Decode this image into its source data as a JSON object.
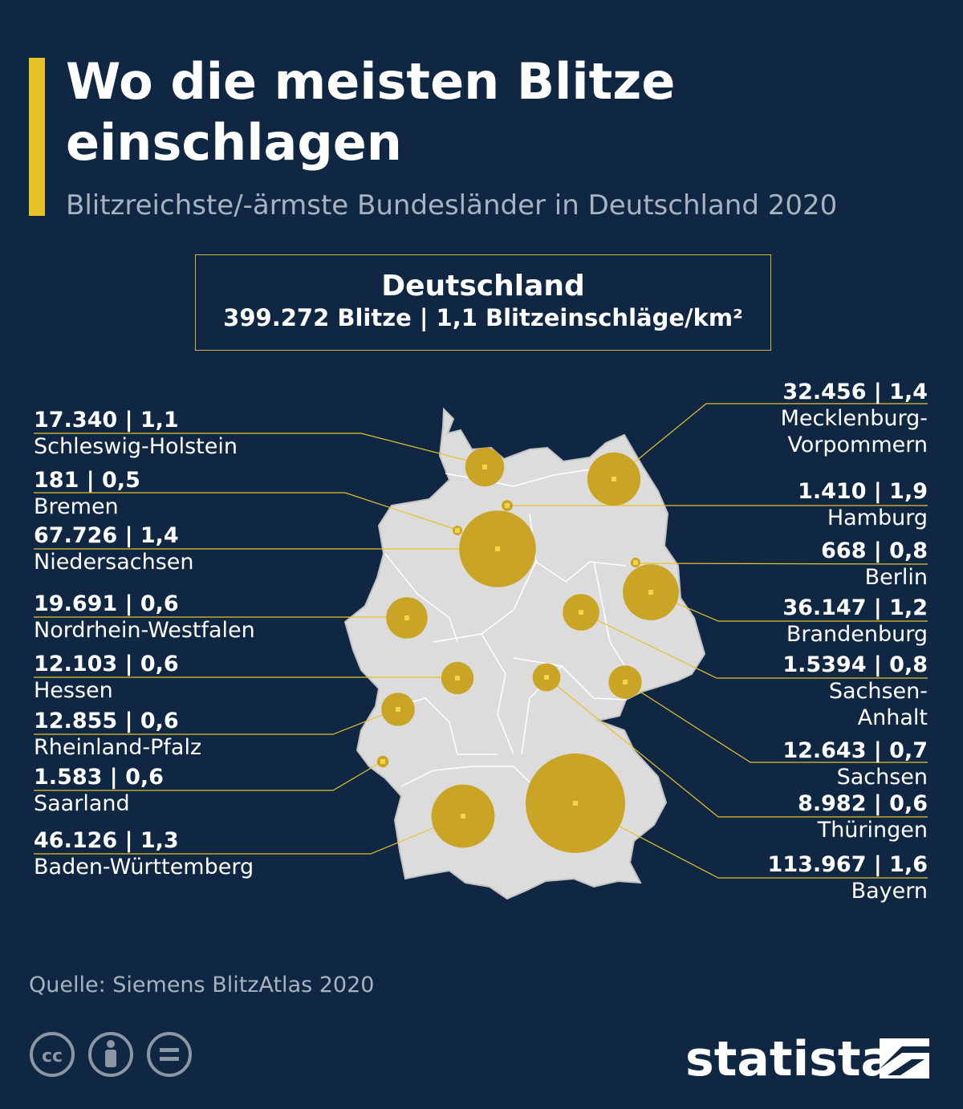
{
  "header": {
    "title": "Wo die meisten Blitze einschlagen",
    "subtitle": "Blitzreichste/-ärmste Bundesländer in Deutschland 2020"
  },
  "summary": {
    "title": "Deutschland",
    "stats": "399.272 Blitze | 1,1 Blitzeinschläge/km²"
  },
  "colors": {
    "background": "#0f2742",
    "accent": "#e8c22b",
    "bubble": "#c9a425",
    "land": "#dcdcdc"
  },
  "regions": [
    {
      "name": "Schleswig-Holstein",
      "value": "17.340 | 1,1",
      "strikes": 17340,
      "density": 1.1
    },
    {
      "name": "Bremen",
      "value": "181 | 0,5",
      "strikes": 181,
      "density": 0.5
    },
    {
      "name": "Niedersachsen",
      "value": "67.726 | 1,4",
      "strikes": 67726,
      "density": 1.4
    },
    {
      "name": "Nordrhein-Westfalen",
      "value": "19.691 | 0,6",
      "strikes": 19691,
      "density": 0.6
    },
    {
      "name": "Hessen",
      "value": "12.103 | 0,6",
      "strikes": 12103,
      "density": 0.6
    },
    {
      "name": "Rheinland-Pfalz",
      "value": "12.855 | 0,6",
      "strikes": 12855,
      "density": 0.6
    },
    {
      "name": "Saarland",
      "value": "1.583 | 0,6",
      "strikes": 1583,
      "density": 0.6
    },
    {
      "name": "Baden-Württemberg",
      "value": "46.126 | 1,3",
      "strikes": 46126,
      "density": 1.3
    },
    {
      "name_lines": [
        "Mecklenburg-",
        "Vorpommern"
      ],
      "value": "32.456 | 1,4",
      "strikes": 32456,
      "density": 1.4
    },
    {
      "name": "Hamburg",
      "value": "1.410 | 1,9",
      "strikes": 1410,
      "density": 1.9
    },
    {
      "name": "Berlin",
      "value": "668 | 0,8",
      "strikes": 668,
      "density": 0.8
    },
    {
      "name": "Brandenburg",
      "value": "36.147 | 1,2",
      "strikes": 36147,
      "density": 1.2
    },
    {
      "name_lines": [
        "Sachsen-",
        "Anhalt"
      ],
      "value": "1.5394 | 0,8",
      "strikes": 15394,
      "density": 0.8
    },
    {
      "name": "Sachsen",
      "value": "12.643 | 0,7",
      "strikes": 12643,
      "density": 0.7
    },
    {
      "name": "Thüringen",
      "value": "8.982 | 0,6",
      "strikes": 8982,
      "density": 0.6
    },
    {
      "name": "Bayern",
      "value": "113.967 | 1,6",
      "strikes": 113967,
      "density": 1.6
    }
  ],
  "footer": {
    "source": "Quelle: Siemens BlitzAtlas 2020",
    "logo": "statista",
    "license_icons": [
      "cc-icon",
      "by-icon",
      "nd-icon"
    ]
  }
}
